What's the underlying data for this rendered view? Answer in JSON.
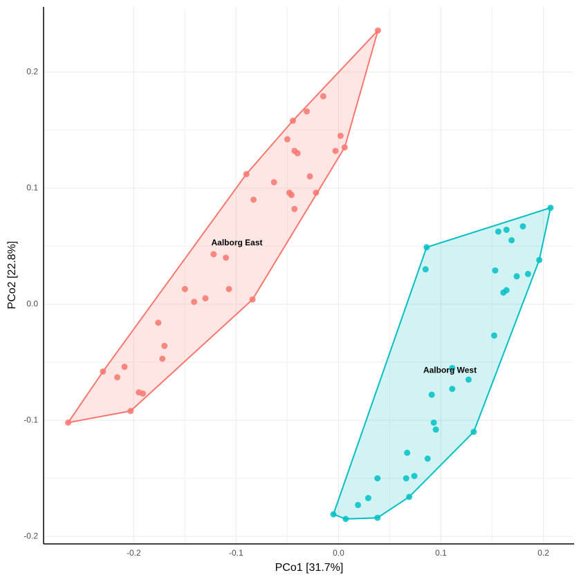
{
  "chart_data": {
    "type": "scatter",
    "x_label": "PCo1 [31.7%]",
    "y_label": "PCo2 [22.8%]",
    "xlim": [
      -0.288,
      0.23
    ],
    "ylim": [
      -0.2065,
      0.256
    ],
    "xticks": [
      -0.2,
      -0.1,
      {
        "value": 0,
        "label": "0.0"
      },
      0.1,
      0.2
    ],
    "yticks": [
      -0.2,
      -0.1,
      {
        "value": 0,
        "label": "0.0"
      },
      0.1,
      0.2
    ],
    "grid": true,
    "series": [
      {
        "name": "Aalborg East",
        "color": "#F8766D",
        "x": [
          0.0385,
          -0.0149,
          -0.031,
          -0.0446,
          0.002,
          -0.05,
          0.006,
          -0.003,
          -0.043,
          -0.04,
          -0.028,
          -0.09,
          -0.063,
          -0.048,
          -0.046,
          -0.083,
          -0.022,
          -0.043,
          -0.122,
          -0.11,
          -0.15,
          -0.107,
          -0.13,
          -0.141,
          -0.084,
          -0.176,
          -0.17,
          -0.172,
          -0.23,
          -0.209,
          -0.216,
          -0.195,
          -0.191,
          -0.203,
          -0.264
        ],
        "values": [
          0.2357,
          0.179,
          0.166,
          0.158,
          0.145,
          0.142,
          0.135,
          0.132,
          0.132,
          0.13,
          0.11,
          0.112,
          0.105,
          0.096,
          0.094,
          0.09,
          0.096,
          0.082,
          0.043,
          0.04,
          0.013,
          0.013,
          0.005,
          0.002,
          0.004,
          -0.016,
          -0.036,
          -0.047,
          -0.058,
          -0.054,
          -0.063,
          -0.076,
          -0.077,
          -0.092,
          -0.102
        ]
      },
      {
        "name": "Aalborg West",
        "color": "#00BFC4",
        "x": [
          0.207,
          0.18,
          0.164,
          0.156,
          0.169,
          0.086,
          0.085,
          0.153,
          0.196,
          0.185,
          0.174,
          0.164,
          0.161,
          0.152,
          0.111,
          0.127,
          0.111,
          0.091,
          0.093,
          0.095,
          0.132,
          0.067,
          0.087,
          0.038,
          0.066,
          0.074,
          0.069,
          0.029,
          0.019,
          -0.005,
          0.007,
          0.038
        ],
        "values": [
          0.083,
          0.067,
          0.064,
          0.0625,
          0.055,
          0.049,
          0.03,
          0.029,
          0.038,
          0.026,
          0.024,
          0.012,
          0.01,
          -0.027,
          -0.055,
          -0.065,
          -0.073,
          -0.078,
          -0.102,
          -0.108,
          -0.11,
          -0.128,
          -0.133,
          -0.15,
          -0.15,
          -0.148,
          -0.166,
          -0.167,
          -0.173,
          -0.181,
          -0.185,
          -0.184
        ]
      }
    ]
  }
}
